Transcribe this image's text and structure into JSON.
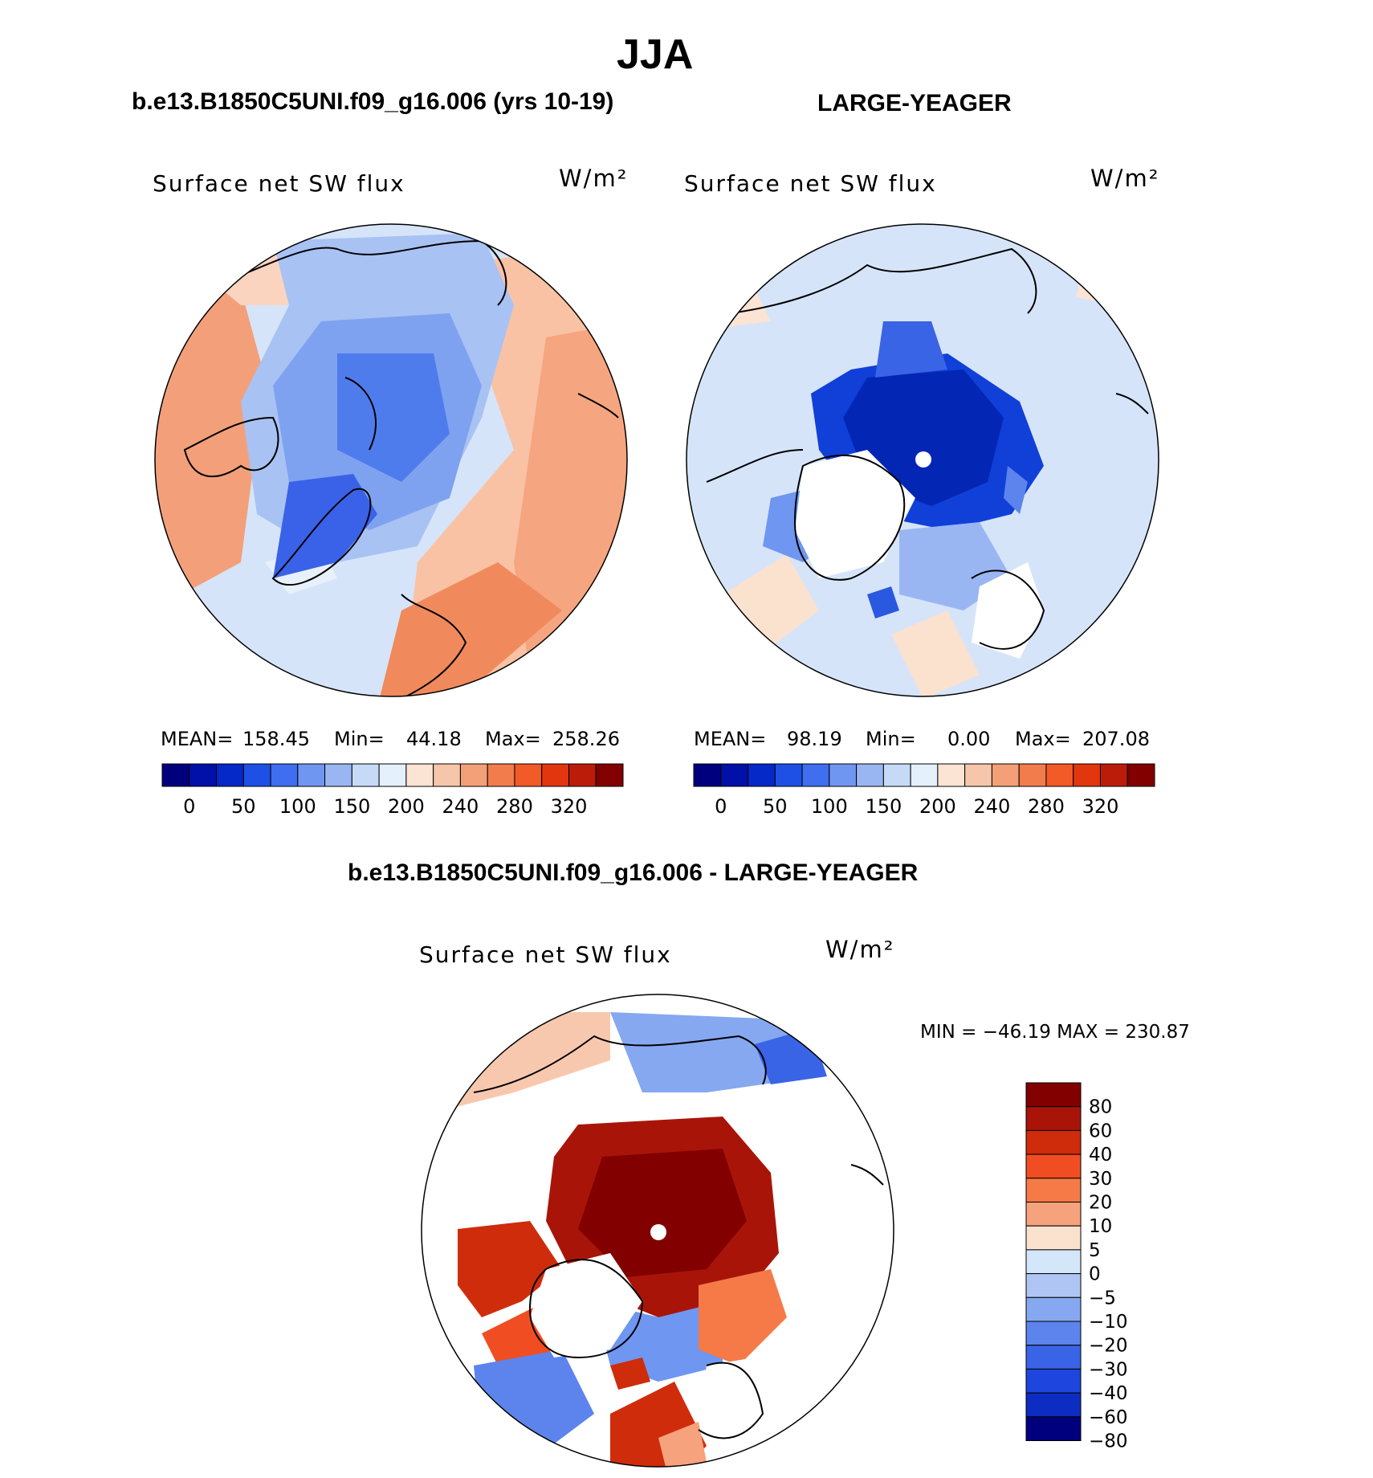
{
  "page_title": "JJA",
  "colors": {
    "cb_main": [
      "#00007f",
      "#0010a8",
      "#0528c8",
      "#1e50e6",
      "#3f6ef0",
      "#6f96f0",
      "#9ab6f2",
      "#c6daf8",
      "#e4f0fb",
      "#fbe4d4",
      "#f6c6aa",
      "#f3a079",
      "#f37c4c",
      "#f25a28",
      "#e2360f",
      "#bb1c0a",
      "#820000"
    ],
    "cb_diff": [
      "#820000",
      "#a81508",
      "#cf2c0c",
      "#f04e22",
      "#f57a48",
      "#f6a27c",
      "#fbe2cf",
      "#d4e6f9",
      "#afc6f5",
      "#86a8f0",
      "#5c84ec",
      "#3a64e6",
      "#1e46de",
      "#0d2dc2",
      "#00007f"
    ]
  },
  "panels": [
    {
      "title": "b.e13.B1850C5UNI.f09_g16.006 (yrs 10-19)",
      "variable": "Surface net SW flux",
      "units": "W/m²",
      "stats": {
        "mean_label": "MEAN=",
        "mean": "158.45",
        "min_label": "Min=",
        "min": "44.18",
        "max_label": "Max=",
        "max": "258.26"
      },
      "colorbar_ticks": [
        "0",
        "50",
        "100",
        "150",
        "200",
        "240",
        "280",
        "320"
      ]
    },
    {
      "title": "LARGE-YEAGER",
      "variable": "Surface net SW flux",
      "units": "W/m²",
      "stats": {
        "mean_label": "MEAN=",
        "mean": "98.19",
        "min_label": "Min=",
        "min": "0.00",
        "max_label": "Max=",
        "max": "207.08"
      },
      "colorbar_ticks": [
        "0",
        "50",
        "100",
        "150",
        "200",
        "240",
        "280",
        "320"
      ]
    }
  ],
  "diff_panel": {
    "title": "b.e13.B1850C5UNI.f09_g16.006 - LARGE-YEAGER",
    "variable": "Surface net SW flux",
    "units": "W/m²",
    "minmax": "MIN = −46.19 MAX = 230.87",
    "colorbar_levels": [
      "80",
      "60",
      "40",
      "30",
      "20",
      "10",
      "5",
      "0",
      "−5",
      "−10",
      "−20",
      "−30",
      "−40",
      "−60",
      "−80"
    ]
  }
}
